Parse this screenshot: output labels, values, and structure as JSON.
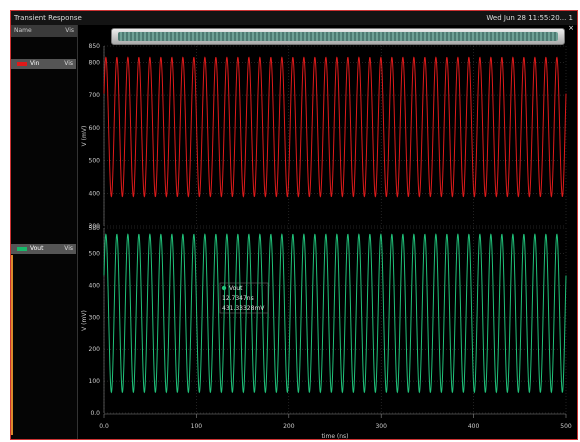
{
  "window": {
    "title": "Transient Response",
    "datetime": "Wed Jun 28 11:55:20... 1"
  },
  "sidebar": {
    "header_name": "Name",
    "header_value": "Vis",
    "signals": [
      {
        "name": "Vin",
        "value": "Vis",
        "color": "#e01a1a"
      },
      {
        "name": "Vout",
        "value": "Vis",
        "color": "#18b86a"
      }
    ]
  },
  "colors": {
    "vin": "#e01a1a",
    "vout": "#20c27a",
    "grid": "#555555"
  },
  "cursor": {
    "label": "Vout",
    "x": "12.7347ns",
    "y": "431.33328mV"
  },
  "chart_data": [
    {
      "type": "line",
      "title": "",
      "ylabel": "V (mV)",
      "xlim": [
        0,
        500
      ],
      "ylim": [
        300,
        850
      ],
      "yticks": [
        "850",
        "800",
        "700",
        "600",
        "500",
        "400",
        "300"
      ],
      "series": [
        {
          "name": "Vin",
          "waveform": "sine",
          "cycles": 42,
          "min": 390,
          "max": 815
        }
      ]
    },
    {
      "type": "line",
      "title": "",
      "xlabel": "time (ns)",
      "ylabel": "V (mV)",
      "xlim": [
        0,
        500
      ],
      "ylim": [
        0,
        580
      ],
      "xticks": [
        "0.0",
        "100",
        "200",
        "300",
        "400",
        "500"
      ],
      "yticks": [
        "580",
        "500",
        "400",
        "300",
        "200",
        "100",
        "0.0"
      ],
      "series": [
        {
          "name": "Vout",
          "waveform": "sine",
          "cycles": 42,
          "min": 65,
          "max": 560
        }
      ]
    }
  ]
}
